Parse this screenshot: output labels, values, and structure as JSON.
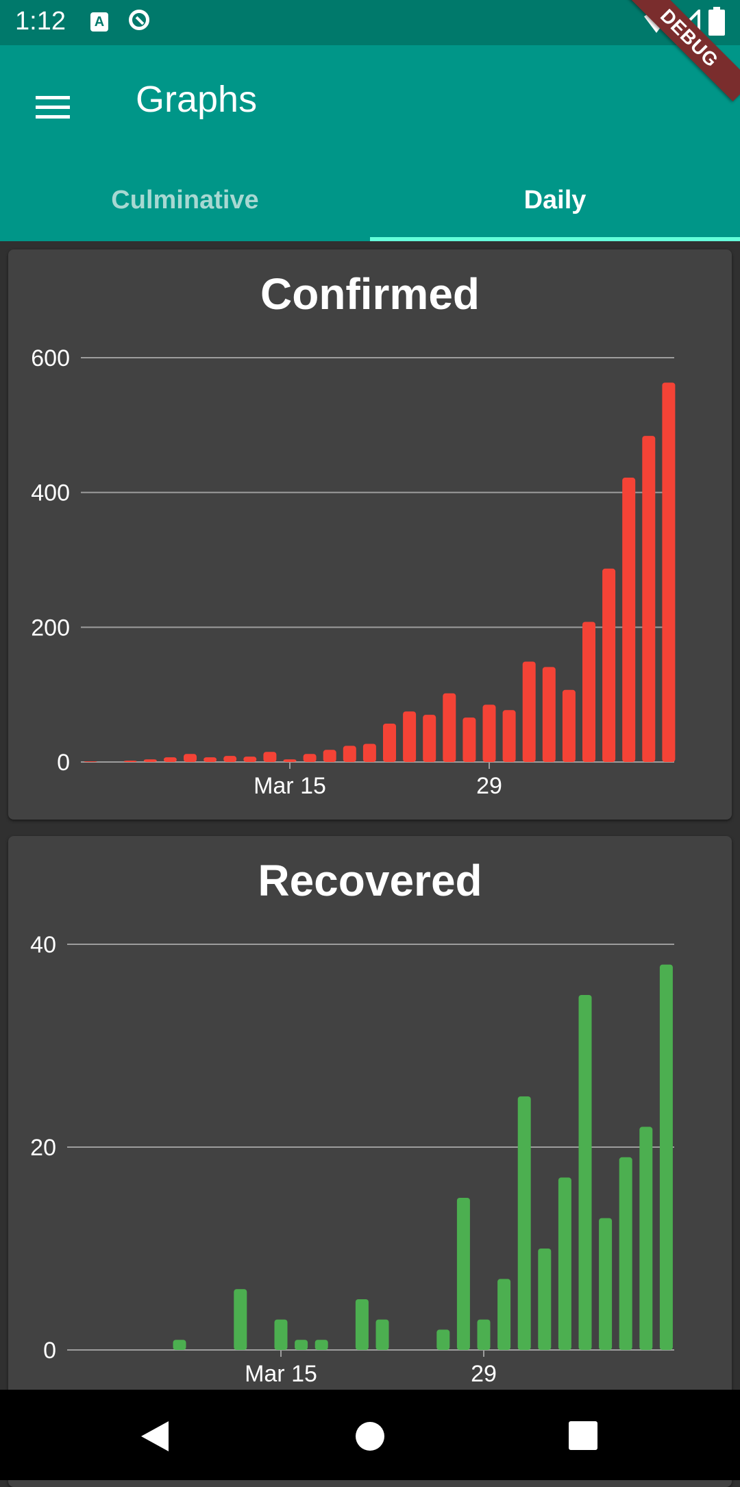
{
  "status": {
    "time": "1:12",
    "icon_a": "A"
  },
  "header": {
    "title": "Graphs",
    "menu_icon": "hamburger-menu-icon"
  },
  "tabs": [
    {
      "label": "Culminative",
      "selected": false
    },
    {
      "label": "Daily",
      "selected": true
    }
  ],
  "debug_banner": "DEBUG",
  "charts": {
    "confirmed": {
      "title": "Confirmed",
      "chart_data": {
        "type": "bar",
        "title": "Confirmed",
        "color": "#f44336",
        "x_tick_labels": [
          "Mar 15",
          "29"
        ],
        "y_ticks": [
          0,
          200,
          400,
          600
        ],
        "ylim": [
          0,
          600
        ],
        "grid": true,
        "values": [
          1,
          0,
          2,
          4,
          7,
          12,
          7,
          9,
          8,
          15,
          4,
          12,
          18,
          24,
          27,
          57,
          75,
          70,
          102,
          66,
          85,
          77,
          149,
          141,
          107,
          208,
          287,
          422,
          484,
          563
        ]
      }
    },
    "recovered": {
      "title": "Recovered",
      "chart_data": {
        "type": "bar",
        "title": "Recovered",
        "color": "#4caf50",
        "x_tick_labels": [
          "Mar 15",
          "29"
        ],
        "y_ticks": [
          0,
          20,
          40
        ],
        "ylim": [
          0,
          40
        ],
        "grid": true,
        "values": [
          0,
          0,
          0,
          0,
          0,
          1,
          0,
          0,
          6,
          0,
          3,
          1,
          1,
          0,
          5,
          3,
          0,
          0,
          2,
          15,
          3,
          7,
          25,
          10,
          17,
          35,
          13,
          19,
          22,
          38
        ]
      }
    }
  },
  "nav": {
    "back_icon": "back-triangle-icon",
    "home_icon": "home-circle-icon",
    "recents_icon": "recents-square-icon"
  }
}
